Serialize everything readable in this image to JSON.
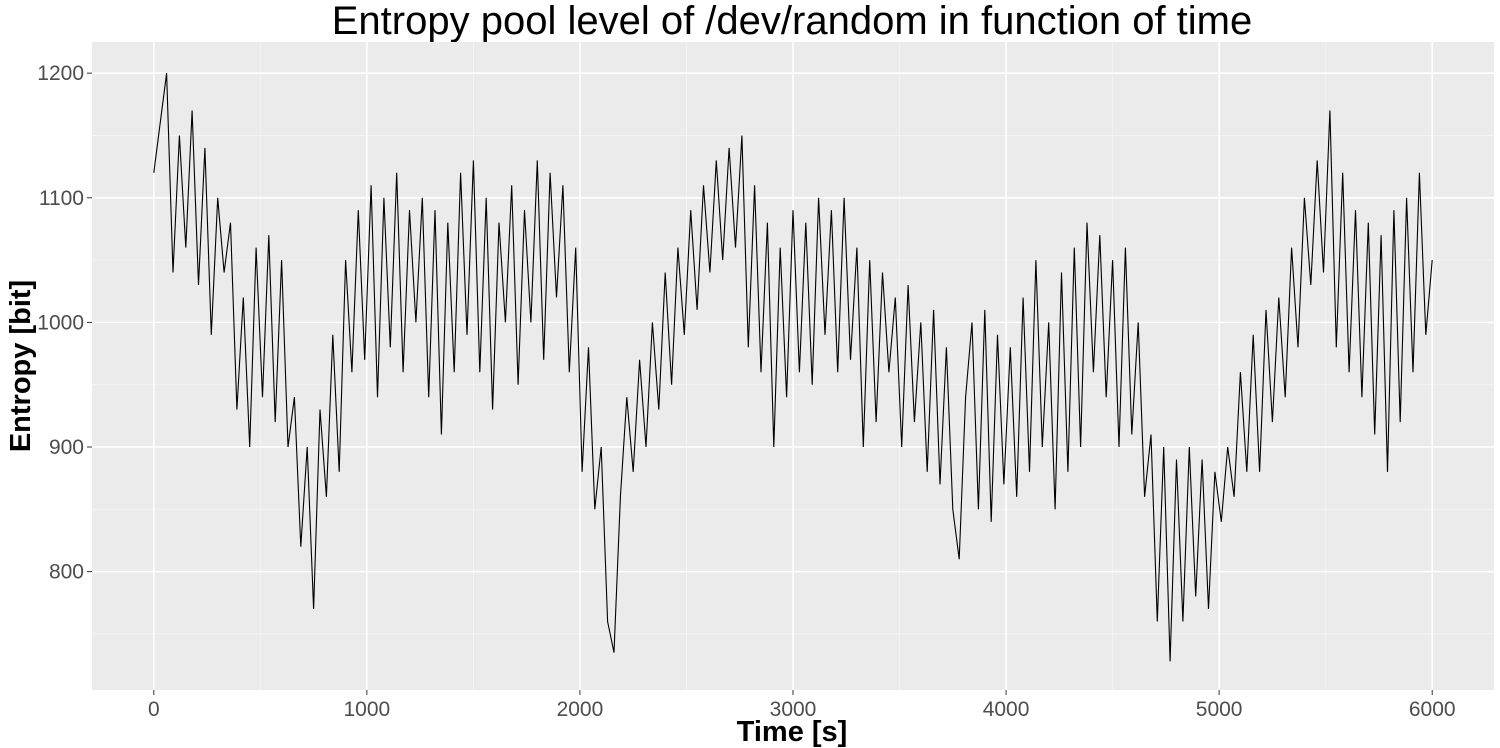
{
  "chart_data": {
    "type": "line",
    "title": "Entropy pool level of /dev/random in function of time",
    "xlabel": "Time [s]",
    "ylabel": "Entropy [bit]",
    "xlim": [
      -290,
      6290
    ],
    "ylim": [
      705,
      1225
    ],
    "x_ticks": [
      "0",
      "1000",
      "2000",
      "3000",
      "4000",
      "5000",
      "6000"
    ],
    "y_ticks": [
      "800",
      "900",
      "1000",
      "1100",
      "1200"
    ],
    "grid": true,
    "background": "#ebebeb",
    "line_color": "#000000",
    "series": [
      {
        "name": "entropy",
        "x_start": 0,
        "x_step": 30,
        "values": [
          1120,
          1160,
          1200,
          1040,
          1150,
          1060,
          1170,
          1030,
          1140,
          990,
          1100,
          1040,
          1080,
          930,
          1020,
          900,
          1060,
          940,
          1070,
          920,
          1050,
          900,
          940,
          820,
          900,
          770,
          930,
          860,
          990,
          880,
          1050,
          960,
          1090,
          970,
          1110,
          940,
          1100,
          980,
          1120,
          960,
          1090,
          1000,
          1100,
          940,
          1090,
          910,
          1080,
          960,
          1120,
          990,
          1130,
          960,
          1100,
          930,
          1080,
          1000,
          1110,
          950,
          1090,
          1000,
          1130,
          970,
          1120,
          1020,
          1110,
          960,
          1060,
          880,
          980,
          850,
          900,
          760,
          735,
          860,
          940,
          880,
          970,
          900,
          1000,
          930,
          1040,
          950,
          1060,
          990,
          1090,
          1010,
          1110,
          1040,
          1130,
          1050,
          1140,
          1060,
          1150,
          980,
          1110,
          960,
          1080,
          900,
          1060,
          940,
          1090,
          960,
          1080,
          950,
          1100,
          990,
          1090,
          960,
          1100,
          970,
          1060,
          900,
          1050,
          920,
          1040,
          960,
          1020,
          900,
          1030,
          920,
          1000,
          880,
          1010,
          870,
          980,
          850,
          810,
          940,
          1000,
          850,
          1010,
          840,
          990,
          870,
          980,
          860,
          1020,
          880,
          1050,
          900,
          1000,
          850,
          1040,
          880,
          1060,
          900,
          1080,
          960,
          1070,
          940,
          1050,
          900,
          1060,
          910,
          1000,
          860,
          910,
          760,
          900,
          728,
          890,
          760,
          900,
          780,
          890,
          770,
          880,
          840,
          900,
          860,
          960,
          880,
          990,
          880,
          1010,
          920,
          1020,
          940,
          1060,
          980,
          1100,
          1030,
          1130,
          1040,
          1170,
          980,
          1120,
          960,
          1090,
          940,
          1080,
          910,
          1070,
          880,
          1090,
          920,
          1100,
          960,
          1120,
          990,
          1050
        ]
      }
    ]
  }
}
